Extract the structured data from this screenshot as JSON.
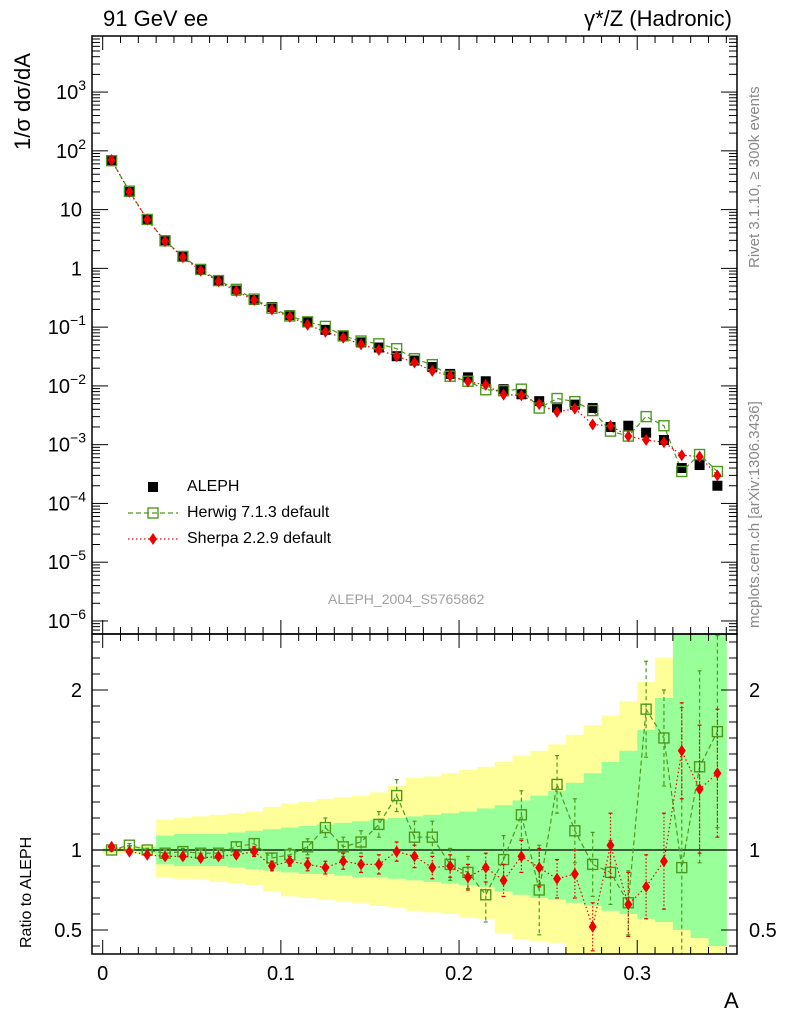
{
  "header": {
    "left": "91 GeV ee",
    "right": "γ*/Z (Hadronic)"
  },
  "side": {
    "rivet": "Rivet 3.1.10, ≥ 300k events",
    "mcplots": "mcplots.cern.ch [arXiv:1306.3436]"
  },
  "analysis_label": "ALEPH_2004_S5765862",
  "chart_data": [
    {
      "type": "scatter",
      "panel": "main",
      "ylabel": "1/σ dσ/dA",
      "xlabel": "A",
      "yscale": "log",
      "ylim": [
        6e-07,
        9000
      ],
      "xlim": [
        -0.006,
        0.356
      ],
      "yticks": [
        {
          "exp": "−6",
          "v": 1e-06
        },
        {
          "exp": "−5",
          "v": 1e-05
        },
        {
          "exp": "−4",
          "v": 0.0001
        },
        {
          "exp": "−3",
          "v": 0.001
        },
        {
          "exp": "−2",
          "v": 0.01
        },
        {
          "exp": "−1",
          "v": 0.1
        },
        {
          "text": "1",
          "v": 1
        },
        {
          "text": "10",
          "v": 10
        },
        {
          "exp": "2",
          "v": 100
        },
        {
          "exp": "3",
          "v": 1000
        }
      ],
      "legend_position": "bottom-left",
      "x": [
        0.005,
        0.015,
        0.025,
        0.035,
        0.045,
        0.055,
        0.065,
        0.075,
        0.085,
        0.095,
        0.105,
        0.115,
        0.125,
        0.135,
        0.145,
        0.155,
        0.165,
        0.175,
        0.185,
        0.195,
        0.205,
        0.215,
        0.225,
        0.235,
        0.245,
        0.255,
        0.265,
        0.275,
        0.285,
        0.295,
        0.305,
        0.315,
        0.325,
        0.335,
        0.345
      ],
      "series": [
        {
          "name": "ALEPH",
          "color": "#000000",
          "marker": "square-filled",
          "values": [
            68,
            20,
            6.8,
            3.0,
            1.6,
            0.95,
            0.62,
            0.42,
            0.29,
            0.22,
            0.16,
            0.12,
            0.09,
            0.07,
            0.055,
            0.045,
            0.032,
            0.027,
            0.021,
            0.016,
            0.014,
            0.012,
            0.0088,
            0.0072,
            0.0055,
            0.0043,
            0.0048,
            0.0042,
            0.002,
            0.0021,
            0.0016,
            0.0012,
            0.0004,
            0.00045,
            0.0002
          ]
        },
        {
          "name": "Herwig 7.1.3 default",
          "color": "#4c9a1d",
          "marker": "square-open",
          "line": "dashed",
          "values": [
            68,
            20.6,
            6.8,
            2.95,
            1.6,
            0.96,
            0.62,
            0.44,
            0.3,
            0.21,
            0.155,
            0.123,
            0.103,
            0.071,
            0.058,
            0.052,
            0.043,
            0.029,
            0.023,
            0.0146,
            0.012,
            0.0086,
            0.0083,
            0.0088,
            0.0042,
            0.0061,
            0.0054,
            0.0038,
            0.0017,
            0.0014,
            0.003,
            0.0021,
            0.00035,
            0.00068,
            0.00035
          ]
        },
        {
          "name": "Sherpa 2.2.9 default",
          "color": "#ee0000",
          "marker": "diamond",
          "line": "dotted",
          "values": [
            70,
            20,
            6.8,
            2.9,
            1.55,
            0.91,
            0.6,
            0.41,
            0.29,
            0.2,
            0.15,
            0.11,
            0.083,
            0.066,
            0.051,
            0.041,
            0.032,
            0.025,
            0.018,
            0.0148,
            0.0118,
            0.0104,
            0.0071,
            0.0069,
            0.0049,
            0.0036,
            0.0041,
            0.0022,
            0.0021,
            0.0014,
            0.0012,
            0.0011,
            0.00066,
            0.00063,
            0.0003
          ]
        }
      ]
    },
    {
      "type": "scatter",
      "panel": "ratio",
      "ylabel": "Ratio to ALEPH",
      "xlabel": "A",
      "ylim": [
        0.35,
        2.35
      ],
      "yticks": [
        0.5,
        1,
        2
      ],
      "xticks": [
        0,
        0.1,
        0.2,
        0.3
      ],
      "x": [
        0.005,
        0.015,
        0.025,
        0.035,
        0.045,
        0.055,
        0.065,
        0.075,
        0.085,
        0.095,
        0.105,
        0.115,
        0.125,
        0.135,
        0.145,
        0.155,
        0.165,
        0.175,
        0.185,
        0.195,
        0.205,
        0.215,
        0.225,
        0.235,
        0.245,
        0.255,
        0.265,
        0.275,
        0.285,
        0.295,
        0.305,
        0.315,
        0.325,
        0.335,
        0.345
      ],
      "band_outer": {
        "color": "#ffff99",
        "low": [
          0.98,
          0.98,
          0.97,
          0.83,
          0.82,
          0.82,
          0.8,
          0.79,
          0.78,
          0.74,
          0.71,
          0.7,
          0.69,
          0.68,
          0.67,
          0.65,
          0.64,
          0.62,
          0.61,
          0.6,
          0.58,
          0.57,
          0.48,
          0.44,
          0.43,
          0.42,
          0.35,
          0.35,
          0.35,
          0.35,
          0.35,
          0.35,
          0.35,
          0.35,
          0.35
        ],
        "high": [
          1.02,
          1.02,
          1.03,
          1.19,
          1.2,
          1.21,
          1.22,
          1.23,
          1.24,
          1.27,
          1.29,
          1.3,
          1.32,
          1.33,
          1.34,
          1.36,
          1.4,
          1.45,
          1.46,
          1.48,
          1.5,
          1.52,
          1.55,
          1.59,
          1.62,
          1.66,
          1.72,
          1.78,
          1.84,
          1.93,
          2.05,
          2.2,
          2.35,
          2.35,
          2.35
        ]
      },
      "band_inner": {
        "color": "#99ff99",
        "low": [
          0.99,
          0.99,
          0.98,
          0.91,
          0.9,
          0.9,
          0.9,
          0.89,
          0.88,
          0.87,
          0.86,
          0.85,
          0.85,
          0.84,
          0.83,
          0.83,
          0.82,
          0.81,
          0.8,
          0.79,
          0.78,
          0.77,
          0.74,
          0.72,
          0.7,
          0.69,
          0.67,
          0.65,
          0.62,
          0.6,
          0.57,
          0.55,
          0.5,
          0.45,
          0.4
        ],
        "high": [
          1.01,
          1.01,
          1.02,
          1.09,
          1.1,
          1.1,
          1.1,
          1.11,
          1.12,
          1.13,
          1.14,
          1.15,
          1.16,
          1.17,
          1.18,
          1.19,
          1.2,
          1.21,
          1.22,
          1.23,
          1.24,
          1.26,
          1.28,
          1.31,
          1.34,
          1.37,
          1.42,
          1.48,
          1.55,
          1.62,
          1.75,
          1.95,
          2.35,
          2.35,
          2.35
        ]
      },
      "series": [
        {
          "name": "Herwig 7.1.3 default",
          "color": "#4c9a1d",
          "marker": "square-open",
          "line": "dashed",
          "values": [
            1.0,
            1.03,
            1.0,
            0.98,
            0.99,
            0.98,
            0.98,
            1.02,
            1.04,
            0.95,
            0.97,
            1.02,
            1.14,
            1.02,
            1.05,
            1.16,
            1.34,
            1.08,
            1.08,
            0.91,
            0.86,
            0.72,
            0.94,
            1.22,
            0.75,
            1.41,
            1.12,
            0.91,
            0.86,
            0.67,
            1.88,
            1.7,
            0.89,
            1.52,
            1.74
          ],
          "err": [
            0.01,
            0.01,
            0.01,
            0.02,
            0.02,
            0.02,
            0.02,
            0.03,
            0.03,
            0.03,
            0.04,
            0.05,
            0.06,
            0.06,
            0.07,
            0.08,
            0.1,
            0.1,
            0.1,
            0.1,
            0.1,
            0.17,
            0.15,
            0.15,
            0.28,
            0.18,
            0.2,
            0.2,
            0.2,
            0.2,
            0.3,
            0.3,
            1.0,
            0.6,
            0.6
          ]
        },
        {
          "name": "Sherpa 2.2.9 default",
          "color": "#ee0000",
          "marker": "diamond",
          "line": "dotted",
          "values": [
            1.02,
            0.99,
            0.97,
            0.96,
            0.96,
            0.95,
            0.96,
            0.97,
            0.99,
            0.9,
            0.93,
            0.91,
            0.89,
            0.93,
            0.91,
            0.91,
            0.99,
            0.96,
            0.89,
            0.9,
            0.83,
            0.89,
            0.81,
            0.96,
            0.89,
            0.82,
            0.85,
            0.52,
            1.03,
            0.66,
            0.77,
            0.93,
            1.62,
            1.38,
            1.48
          ],
          "err": [
            0.01,
            0.01,
            0.01,
            0.02,
            0.02,
            0.02,
            0.02,
            0.02,
            0.03,
            0.03,
            0.03,
            0.04,
            0.04,
            0.05,
            0.05,
            0.06,
            0.06,
            0.07,
            0.07,
            0.07,
            0.08,
            0.09,
            0.1,
            0.1,
            0.12,
            0.12,
            0.15,
            0.15,
            0.2,
            0.2,
            0.2,
            0.3,
            0.3,
            0.4,
            0.4
          ]
        }
      ]
    }
  ]
}
